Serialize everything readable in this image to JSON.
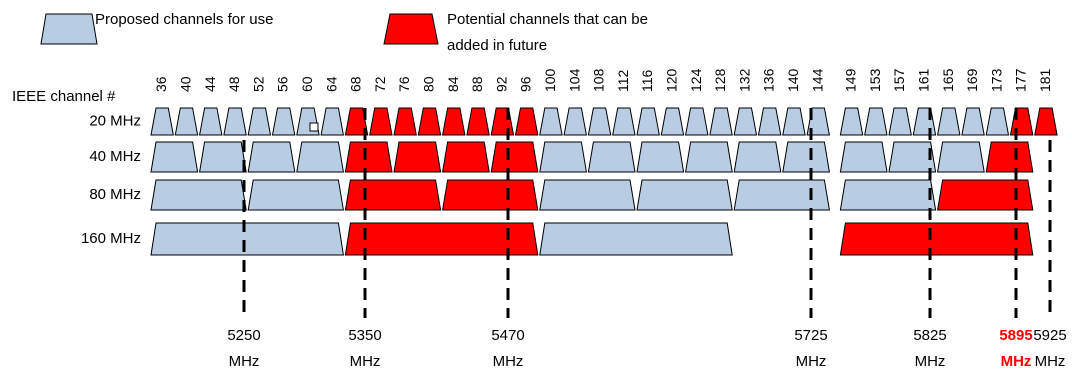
{
  "legend": {
    "proposed": {
      "label": "Proposed channels for use"
    },
    "potential": {
      "label_line1": "Potential channels that can be",
      "label_line2": "added in future"
    }
  },
  "colors": {
    "proposed": "#b8cde4",
    "potential": "#ff0000",
    "outline": "#000000",
    "highlight_freq": "#ff0000"
  },
  "axis_label": "IEEE channel #",
  "channels": [
    "36",
    "40",
    "44",
    "48",
    "52",
    "56",
    "60",
    "64",
    "68",
    "72",
    "76",
    "80",
    "84",
    "88",
    "92",
    "96",
    "100",
    "104",
    "108",
    "112",
    "116",
    "120",
    "124",
    "128",
    "132",
    "136",
    "140",
    "144",
    "149",
    "153",
    "157",
    "161",
    "165",
    "169",
    "173",
    "177",
    "181"
  ],
  "row_labels": [
    "20 MHz",
    "40 MHz",
    "80 MHz",
    "160 MHz"
  ],
  "rows": [
    {
      "label": "20 MHz",
      "blocks": [
        {
          "c": [
            "36"
          ],
          "s": "proposed"
        },
        {
          "c": [
            "40"
          ],
          "s": "proposed"
        },
        {
          "c": [
            "44"
          ],
          "s": "proposed"
        },
        {
          "c": [
            "48"
          ],
          "s": "proposed"
        },
        {
          "c": [
            "52"
          ],
          "s": "proposed"
        },
        {
          "c": [
            "56"
          ],
          "s": "proposed"
        },
        {
          "c": [
            "60"
          ],
          "s": "proposed"
        },
        {
          "c": [
            "64"
          ],
          "s": "proposed"
        },
        {
          "c": [
            "68"
          ],
          "s": "potential"
        },
        {
          "c": [
            "72"
          ],
          "s": "potential"
        },
        {
          "c": [
            "76"
          ],
          "s": "potential"
        },
        {
          "c": [
            "80"
          ],
          "s": "potential"
        },
        {
          "c": [
            "84"
          ],
          "s": "potential"
        },
        {
          "c": [
            "88"
          ],
          "s": "potential"
        },
        {
          "c": [
            "92"
          ],
          "s": "potential"
        },
        {
          "c": [
            "96"
          ],
          "s": "potential"
        },
        {
          "c": [
            "100"
          ],
          "s": "proposed"
        },
        {
          "c": [
            "104"
          ],
          "s": "proposed"
        },
        {
          "c": [
            "108"
          ],
          "s": "proposed"
        },
        {
          "c": [
            "112"
          ],
          "s": "proposed"
        },
        {
          "c": [
            "116"
          ],
          "s": "proposed"
        },
        {
          "c": [
            "120"
          ],
          "s": "proposed"
        },
        {
          "c": [
            "124"
          ],
          "s": "proposed"
        },
        {
          "c": [
            "128"
          ],
          "s": "proposed"
        },
        {
          "c": [
            "132"
          ],
          "s": "proposed"
        },
        {
          "c": [
            "136"
          ],
          "s": "proposed"
        },
        {
          "c": [
            "140"
          ],
          "s": "proposed"
        },
        {
          "c": [
            "144"
          ],
          "s": "proposed"
        },
        {
          "c": [
            "149"
          ],
          "s": "proposed"
        },
        {
          "c": [
            "153"
          ],
          "s": "proposed"
        },
        {
          "c": [
            "157"
          ],
          "s": "proposed"
        },
        {
          "c": [
            "161"
          ],
          "s": "proposed"
        },
        {
          "c": [
            "165"
          ],
          "s": "proposed"
        },
        {
          "c": [
            "169"
          ],
          "s": "proposed"
        },
        {
          "c": [
            "173"
          ],
          "s": "proposed"
        },
        {
          "c": [
            "177"
          ],
          "s": "potential"
        },
        {
          "c": [
            "181"
          ],
          "s": "potential"
        }
      ]
    },
    {
      "label": "40 MHz",
      "blocks": [
        {
          "c": [
            "36",
            "40"
          ],
          "s": "proposed"
        },
        {
          "c": [
            "44",
            "48"
          ],
          "s": "proposed"
        },
        {
          "c": [
            "52",
            "56"
          ],
          "s": "proposed"
        },
        {
          "c": [
            "60",
            "64"
          ],
          "s": "proposed"
        },
        {
          "c": [
            "68",
            "72"
          ],
          "s": "potential"
        },
        {
          "c": [
            "76",
            "80"
          ],
          "s": "potential"
        },
        {
          "c": [
            "84",
            "88"
          ],
          "s": "potential"
        },
        {
          "c": [
            "92",
            "96"
          ],
          "s": "potential"
        },
        {
          "c": [
            "100",
            "104"
          ],
          "s": "proposed"
        },
        {
          "c": [
            "108",
            "112"
          ],
          "s": "proposed"
        },
        {
          "c": [
            "116",
            "120"
          ],
          "s": "proposed"
        },
        {
          "c": [
            "124",
            "128"
          ],
          "s": "proposed"
        },
        {
          "c": [
            "132",
            "136"
          ],
          "s": "proposed"
        },
        {
          "c": [
            "140",
            "144"
          ],
          "s": "proposed"
        },
        {
          "c": [
            "149",
            "153"
          ],
          "s": "proposed"
        },
        {
          "c": [
            "157",
            "161"
          ],
          "s": "proposed"
        },
        {
          "c": [
            "165",
            "169"
          ],
          "s": "proposed"
        },
        {
          "c": [
            "173",
            "177"
          ],
          "s": "potential"
        }
      ]
    },
    {
      "label": "80 MHz",
      "blocks": [
        {
          "c": [
            "36",
            "48"
          ],
          "s": "proposed"
        },
        {
          "c": [
            "52",
            "64"
          ],
          "s": "proposed"
        },
        {
          "c": [
            "68",
            "80"
          ],
          "s": "potential"
        },
        {
          "c": [
            "84",
            "96"
          ],
          "s": "potential"
        },
        {
          "c": [
            "100",
            "112"
          ],
          "s": "proposed"
        },
        {
          "c": [
            "116",
            "128"
          ],
          "s": "proposed"
        },
        {
          "c": [
            "132",
            "144"
          ],
          "s": "proposed"
        },
        {
          "c": [
            "149",
            "161"
          ],
          "s": "proposed"
        },
        {
          "c": [
            "165",
            "177"
          ],
          "s": "potential"
        }
      ]
    },
    {
      "label": "160 MHz",
      "blocks": [
        {
          "c": [
            "36",
            "64"
          ],
          "s": "proposed"
        },
        {
          "c": [
            "68",
            "96"
          ],
          "s": "potential"
        },
        {
          "c": [
            "100",
            "128"
          ],
          "s": "proposed"
        },
        {
          "c": [
            "149",
            "177"
          ],
          "s": "potential"
        }
      ]
    }
  ],
  "boundaries": [
    {
      "value": "5250",
      "unit": "MHz",
      "highlight": false
    },
    {
      "value": "5350",
      "unit": "MHz",
      "highlight": false
    },
    {
      "value": "5470",
      "unit": "MHz",
      "highlight": false
    },
    {
      "value": "5725",
      "unit": "MHz",
      "highlight": false
    },
    {
      "value": "5825",
      "unit": "MHz",
      "highlight": false
    },
    {
      "value": "5895",
      "unit": "MHz",
      "highlight": true
    },
    {
      "value": "5925",
      "unit": "MHz",
      "highlight": false
    }
  ]
}
